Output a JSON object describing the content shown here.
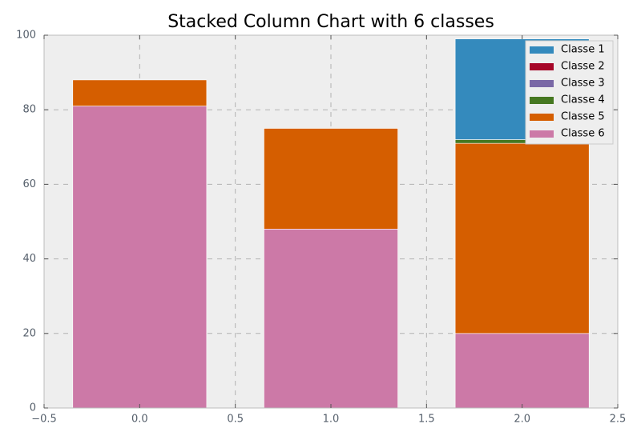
{
  "chart_data": {
    "type": "bar",
    "stacked": true,
    "title": "Stacked Column Chart with 6 classes",
    "x": [
      0,
      1,
      2
    ],
    "series": [
      {
        "name": "Classe 1",
        "color": "#348abd",
        "values": [
          0,
          0,
          27
        ]
      },
      {
        "name": "Classe 2",
        "color": "#a60628",
        "values": [
          0,
          0,
          0
        ]
      },
      {
        "name": "Classe 3",
        "color": "#7a68a6",
        "values": [
          0,
          0,
          0
        ]
      },
      {
        "name": "Classe 4",
        "color": "#467821",
        "values": [
          0,
          0,
          1
        ]
      },
      {
        "name": "Classe 5",
        "color": "#d55e00",
        "values": [
          7,
          27,
          51
        ]
      },
      {
        "name": "Classe 6",
        "color": "#cc79a7",
        "values": [
          81,
          48,
          20
        ]
      }
    ],
    "xlim": [
      -0.5,
      2.5
    ],
    "xticks": [
      {
        "value": -0.5,
        "label": "−0.5"
      },
      {
        "value": 0,
        "label": "0.0"
      },
      0.5,
      {
        "value": 1,
        "label": "1.0"
      },
      1.5,
      {
        "value": 2,
        "label": "2.0"
      },
      2.5
    ],
    "ylim": [
      0,
      100
    ],
    "yticks": [
      0,
      20,
      40,
      60,
      80,
      100
    ],
    "grid": true,
    "legend": "upper right"
  }
}
